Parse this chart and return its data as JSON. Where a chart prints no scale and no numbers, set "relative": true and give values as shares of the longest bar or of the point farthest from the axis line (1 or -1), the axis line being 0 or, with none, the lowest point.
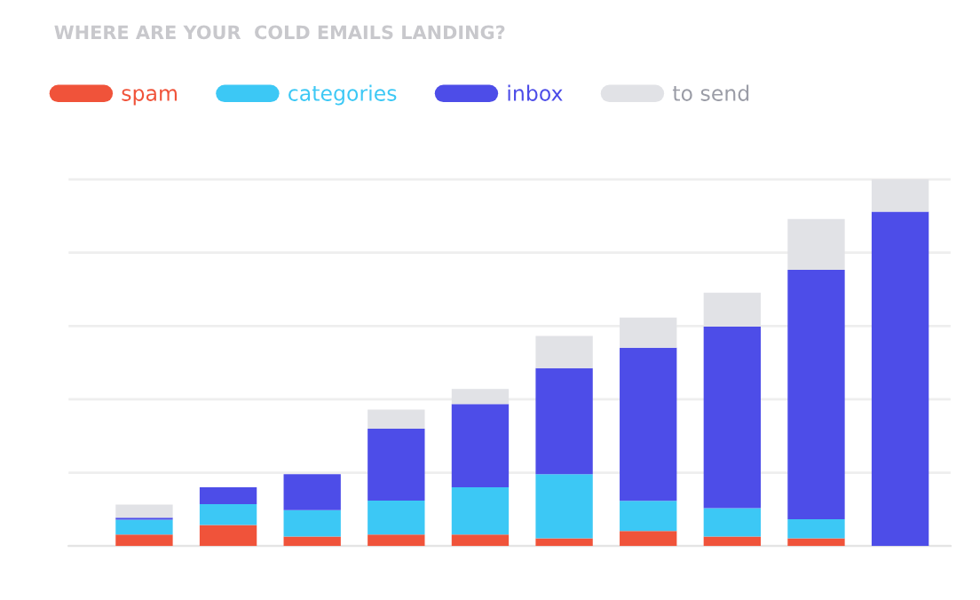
{
  "chart_data": {
    "type": "bar",
    "title": "WHERE ARE YOUR  COLD EMAILS LANDING?",
    "relative": true,
    "stacked": true,
    "grid": "y",
    "legend": "top left",
    "categories": [
      null,
      null,
      null,
      null,
      null,
      null,
      null,
      null,
      null,
      null
    ],
    "series": [
      {
        "name": "spam",
        "color": "#f0533a",
        "values": [
          0.031,
          0.057,
          0.026,
          0.031,
          0.031,
          0.021,
          0.041,
          0.026,
          0.021,
          0
        ]
      },
      {
        "name": "categories",
        "color": "#3cc8f5",
        "values": [
          0.041,
          0.057,
          0.072,
          0.093,
          0.129,
          0.175,
          0.082,
          0.077,
          0.052,
          0
        ]
      },
      {
        "name": "inbox",
        "color": "#4d4de8",
        "values": [
          0.005,
          0.046,
          0.098,
          0.196,
          0.227,
          0.289,
          0.418,
          0.495,
          0.68,
          0.912
        ]
      },
      {
        "name": "to send",
        "color": "#e1e2e6",
        "values": [
          0.036,
          0,
          0,
          0.052,
          0.041,
          0.088,
          0.082,
          0.093,
          0.139,
          0.088
        ]
      }
    ]
  }
}
